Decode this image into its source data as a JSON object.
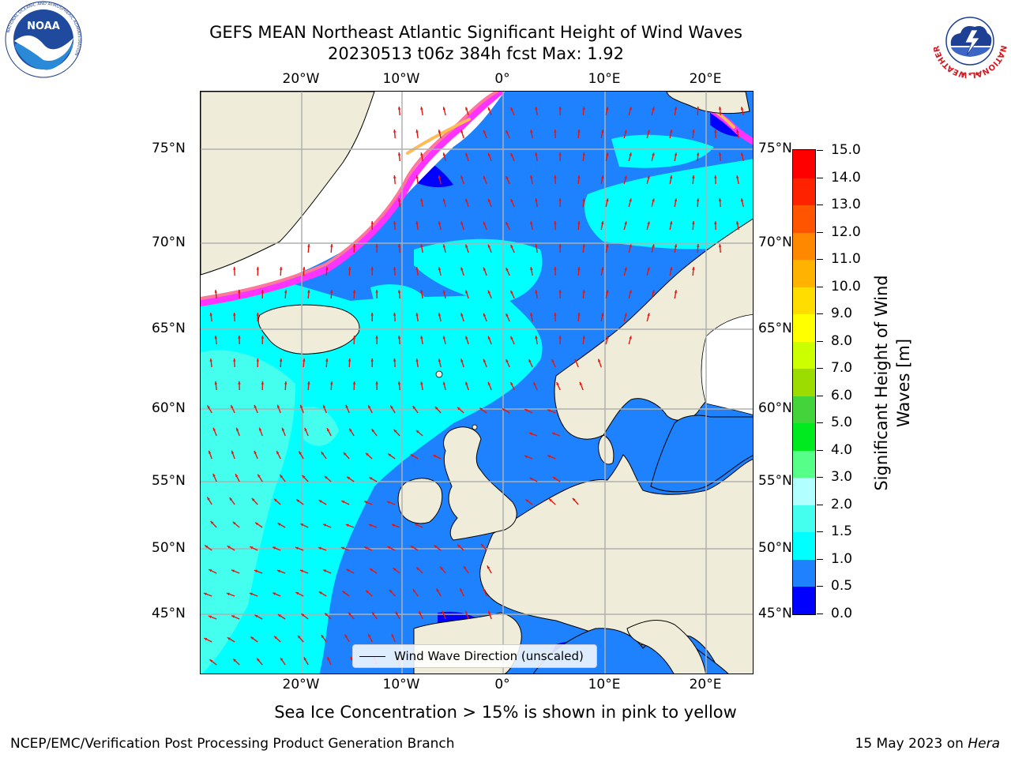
{
  "header": {
    "title_line1": "GEFS MEAN Northeast Atlantic Significant Height of Wind Waves",
    "title_line2": "20230513 t06z 384h fcst   Max: 1.92"
  },
  "logos": {
    "noaa_text": "NOAA",
    "noaa_ring": "NATIONAL OCEANIC AND ATMOSPHERIC ADMINISTRATION",
    "noaa_ring_bottom": "U.S. DEPARTMENT OF COMMERCE",
    "nws_ring": "NATIONAL WEATHER SERVICE"
  },
  "map": {
    "lon_ticks": [
      "20°W",
      "10°W",
      "0°",
      "10°E",
      "20°E"
    ],
    "lat_ticks": [
      "75°N",
      "70°N",
      "65°N",
      "60°N",
      "55°N",
      "50°N",
      "45°N"
    ],
    "legend_label": "Wind Wave Direction (unscaled)",
    "colors": {
      "land": "#efedda",
      "sea_ice": "#ffffff",
      "grid": "#b0b0b0",
      "arrow": "#e8140c",
      "coast": "#000000",
      "ice_edge": [
        "#ff33ff",
        "#ff7799",
        "#ffbb55",
        "#ffee00"
      ]
    }
  },
  "colorbar": {
    "title_line1": "Significant Height of Wind",
    "title_line2": "Waves [m]",
    "tick_labels": [
      "15.0",
      "14.0",
      "13.0",
      "12.0",
      "11.0",
      "10.0",
      "9.0",
      "8.0",
      "7.0",
      "6.0",
      "5.0",
      "4.0",
      "3.0",
      "2.0",
      "1.5",
      "1.0",
      "0.5",
      "0.0"
    ],
    "band_colors": [
      "#0000ff",
      "#1e82ff",
      "#00ffff",
      "#44ffee",
      "#b2ffff",
      "#55ff88",
      "#00ea20",
      "#43d43c",
      "#9cdc00",
      "#ccff00",
      "#ffff00",
      "#ffdd00",
      "#ffb300",
      "#ff8800",
      "#ff5500",
      "#ff2200",
      "#ff0000"
    ]
  },
  "note": "Sea Ice Concentration > 15% is shown in pink to yellow",
  "footer": {
    "left": "NCEP/EMC/Verification Post Processing Product Generation Branch",
    "date": "15 May 2023 on ",
    "host": "Hera"
  }
}
